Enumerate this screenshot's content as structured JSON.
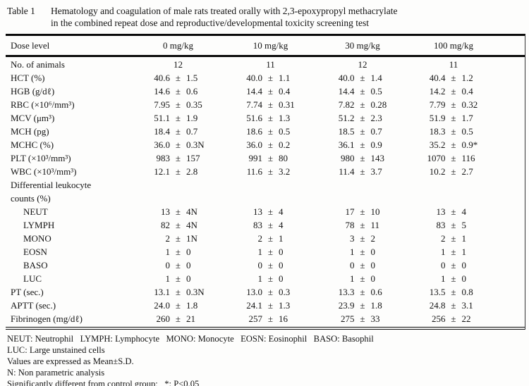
{
  "title": {
    "label": "Table 1",
    "line1": "Hematology and coagulation of male rats treated orally with 2,3-epoxypropyl methacrylate",
    "line2": "in the combined repeat dose and reproductive/developmental toxicity screening test"
  },
  "table": {
    "dose_header": "Dose level",
    "columns": [
      "0 mg/kg",
      "10 mg/kg",
      "30 mg/kg",
      "100 mg/kg"
    ],
    "pm_symbol": "±",
    "rows": [
      {
        "label": "No. of animals",
        "type": "plain",
        "values": [
          "12",
          "11",
          "12",
          "11"
        ]
      },
      {
        "label": "HCT (%)",
        "type": "pm",
        "values": [
          {
            "mean": "40.6",
            "sd": "1.5"
          },
          {
            "mean": "40.0",
            "sd": "1.1"
          },
          {
            "mean": "40.0",
            "sd": "1.4"
          },
          {
            "mean": "40.4",
            "sd": "1.2"
          }
        ]
      },
      {
        "label": "HGB (g/dℓ)",
        "type": "pm",
        "values": [
          {
            "mean": "14.6",
            "sd": "0.6"
          },
          {
            "mean": "14.4",
            "sd": "0.4"
          },
          {
            "mean": "14.4",
            "sd": "0.5"
          },
          {
            "mean": "14.2",
            "sd": "0.4"
          }
        ]
      },
      {
        "label": "RBC (×10⁶/mm³)",
        "type": "pm",
        "values": [
          {
            "mean": "7.95",
            "sd": "0.35"
          },
          {
            "mean": "7.74",
            "sd": "0.31"
          },
          {
            "mean": "7.82",
            "sd": "0.28"
          },
          {
            "mean": "7.79",
            "sd": "0.32"
          }
        ]
      },
      {
        "label": "MCV (μm³)",
        "type": "pm",
        "values": [
          {
            "mean": "51.1",
            "sd": "1.9"
          },
          {
            "mean": "51.6",
            "sd": "1.3"
          },
          {
            "mean": "51.2",
            "sd": "2.3"
          },
          {
            "mean": "51.9",
            "sd": "1.7"
          }
        ]
      },
      {
        "label": "MCH (pg)",
        "type": "pm",
        "values": [
          {
            "mean": "18.4",
            "sd": "0.7"
          },
          {
            "mean": "18.6",
            "sd": "0.5"
          },
          {
            "mean": "18.5",
            "sd": "0.7"
          },
          {
            "mean": "18.3",
            "sd": "0.5"
          }
        ]
      },
      {
        "label": "MCHC (%)",
        "type": "pm",
        "values": [
          {
            "mean": "36.0",
            "sd": "0.3N"
          },
          {
            "mean": "36.0",
            "sd": "0.2"
          },
          {
            "mean": "36.1",
            "sd": "0.9"
          },
          {
            "mean": "35.2",
            "sd": "0.9*"
          }
        ]
      },
      {
        "label": "PLT (×10³/mm³)",
        "type": "pm",
        "values": [
          {
            "mean": "983",
            "sd": "157"
          },
          {
            "mean": "991",
            "sd": "80"
          },
          {
            "mean": "980",
            "sd": "143"
          },
          {
            "mean": "1070",
            "sd": "116"
          }
        ]
      },
      {
        "label": "WBC (×10³/mm³)",
        "type": "pm",
        "values": [
          {
            "mean": "12.1",
            "sd": "2.8"
          },
          {
            "mean": "11.6",
            "sd": "3.2"
          },
          {
            "mean": "11.4",
            "sd": "3.7"
          },
          {
            "mean": "10.2",
            "sd": "2.7"
          }
        ]
      },
      {
        "label": "Differential leukocyte",
        "type": "label",
        "values": []
      },
      {
        "label": "counts (%)",
        "type": "label",
        "values": []
      },
      {
        "label": "NEUT",
        "type": "pm",
        "indent": true,
        "values": [
          {
            "mean": "13",
            "sd": "4N"
          },
          {
            "mean": "13",
            "sd": "4"
          },
          {
            "mean": "17",
            "sd": "10"
          },
          {
            "mean": "13",
            "sd": "4"
          }
        ]
      },
      {
        "label": "LYMPH",
        "type": "pm",
        "indent": true,
        "values": [
          {
            "mean": "82",
            "sd": "4N"
          },
          {
            "mean": "83",
            "sd": "4"
          },
          {
            "mean": "78",
            "sd": "11"
          },
          {
            "mean": "83",
            "sd": "5"
          }
        ]
      },
      {
        "label": "MONO",
        "type": "pm",
        "indent": true,
        "values": [
          {
            "mean": "2",
            "sd": "1N"
          },
          {
            "mean": "2",
            "sd": "1"
          },
          {
            "mean": "3",
            "sd": "2"
          },
          {
            "mean": "2",
            "sd": "1"
          }
        ]
      },
      {
        "label": "EOSN",
        "type": "pm",
        "indent": true,
        "values": [
          {
            "mean": "1",
            "sd": "0"
          },
          {
            "mean": "1",
            "sd": "0"
          },
          {
            "mean": "1",
            "sd": "0"
          },
          {
            "mean": "1",
            "sd": "1"
          }
        ]
      },
      {
        "label": "BASO",
        "type": "pm",
        "indent": true,
        "values": [
          {
            "mean": "0",
            "sd": "0"
          },
          {
            "mean": "0",
            "sd": "0"
          },
          {
            "mean": "0",
            "sd": "0"
          },
          {
            "mean": "0",
            "sd": "0"
          }
        ]
      },
      {
        "label": "LUC",
        "type": "pm",
        "indent": true,
        "values": [
          {
            "mean": "1",
            "sd": "0"
          },
          {
            "mean": "1",
            "sd": "0"
          },
          {
            "mean": "1",
            "sd": "0"
          },
          {
            "mean": "1",
            "sd": "0"
          }
        ]
      },
      {
        "label": "PT (sec.)",
        "type": "pm",
        "values": [
          {
            "mean": "13.1",
            "sd": "0.3N"
          },
          {
            "mean": "13.0",
            "sd": "0.3"
          },
          {
            "mean": "13.3",
            "sd": "0.6"
          },
          {
            "mean": "13.5",
            "sd": "0.8"
          }
        ]
      },
      {
        "label": "APTT (sec.)",
        "type": "pm",
        "values": [
          {
            "mean": "24.0",
            "sd": "1.8"
          },
          {
            "mean": "24.1",
            "sd": "1.3"
          },
          {
            "mean": "23.9",
            "sd": "1.8"
          },
          {
            "mean": "24.8",
            "sd": "3.1"
          }
        ]
      },
      {
        "label": "Fibrinogen (mg/dℓ)",
        "type": "pm",
        "values": [
          {
            "mean": "260",
            "sd": "21"
          },
          {
            "mean": "257",
            "sd": "16"
          },
          {
            "mean": "275",
            "sd": "33"
          },
          {
            "mean": "256",
            "sd": "22"
          }
        ]
      }
    ]
  },
  "footnotes": {
    "lines": [
      "NEUT: Neutrophil   LYMPH: Lymphocyte   MONO: Monocyte   EOSN: Eosinophil   BASO: Basophil",
      "LUC: Large unstained cells",
      "Values are expressed as Mean±S.D.",
      "N: Non parametric analysis",
      "Significantly different from control group;   *: P<0.05"
    ]
  }
}
